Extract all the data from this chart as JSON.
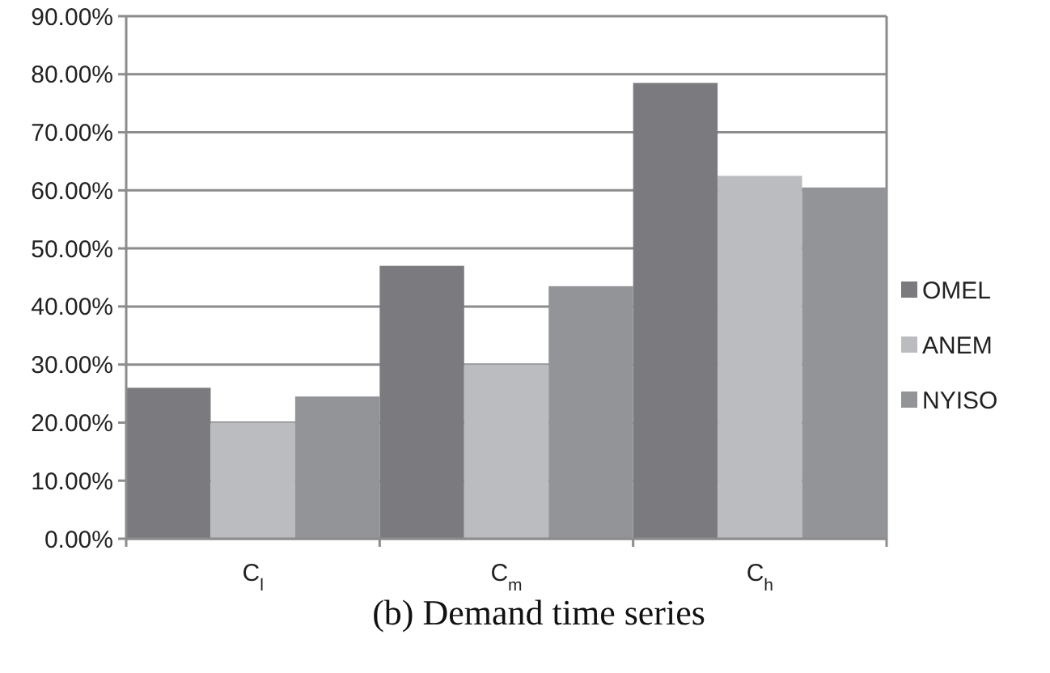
{
  "chart_data": {
    "type": "bar",
    "categories": [
      "C$_{l}$",
      "C$_{m}$",
      "C$_{h}$"
    ],
    "series": [
      {
        "name": "OMEL",
        "color": "#7b7b7f",
        "values": [
          26,
          47,
          78.5
        ]
      },
      {
        "name": "ANEM",
        "color": "#bbbcc0",
        "values": [
          20,
          30,
          62.5
        ]
      },
      {
        "name": "NYISO",
        "color": "#939498",
        "values": [
          24.5,
          43.5,
          60.5
        ]
      }
    ],
    "ylim": [
      0,
      90
    ],
    "yticks": [
      {
        "value": 0,
        "label": "0.00%"
      },
      {
        "value": 10,
        "label": "10.00%"
      },
      {
        "value": 20,
        "label": "20.00%"
      },
      {
        "value": 30,
        "label": "30.00%"
      },
      {
        "value": 40,
        "label": "40.00%"
      },
      {
        "value": 50,
        "label": "50.00%"
      },
      {
        "value": 60,
        "label": "60.00%"
      },
      {
        "value": 70,
        "label": "70.00%"
      },
      {
        "value": 80,
        "label": "80.00%"
      },
      {
        "value": 90,
        "label": "90.00%"
      }
    ],
    "grid": "y",
    "legend": "right",
    "annotations": [
      "(b) Demand time series"
    ]
  }
}
